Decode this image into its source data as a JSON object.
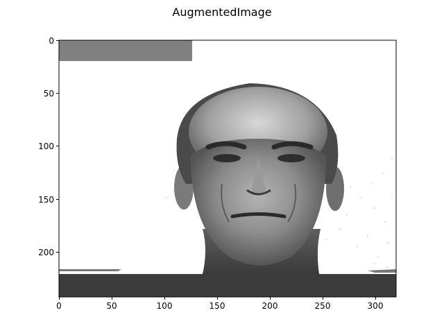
{
  "figure": {
    "title": "AugmentedImage"
  },
  "image": {
    "subject": "grayscale portrait of an older man's face",
    "background_color": "#ffffff",
    "patches": [
      {
        "name": "top-left-gray-block",
        "color": "#808080"
      },
      {
        "name": "bottom-dark-band",
        "color": "#3c3c3c"
      }
    ]
  },
  "axes": {
    "x_ticks": [
      "0",
      "50",
      "100",
      "150",
      "200",
      "250",
      "300"
    ],
    "y_ticks": [
      "0",
      "50",
      "100",
      "150",
      "200"
    ],
    "x_range": [
      0,
      320
    ],
    "y_range": [
      0,
      243
    ]
  }
}
